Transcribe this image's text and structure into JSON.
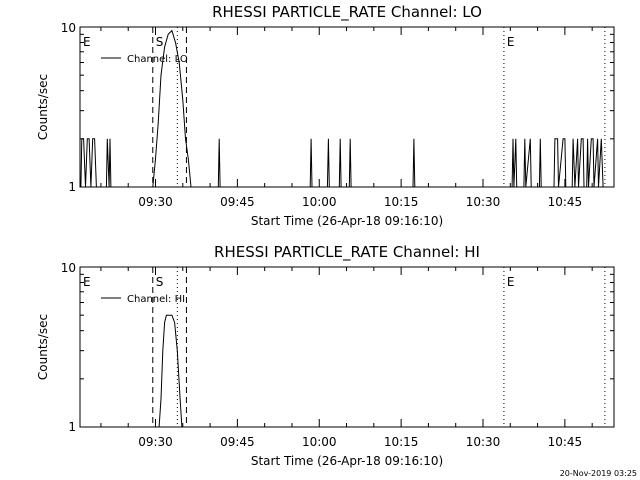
{
  "footer": {
    "timestamp": "20-Nov-2019 03:25"
  },
  "chart_data": [
    {
      "type": "line",
      "title": "RHESSI PARTICLE_RATE Channel: LO",
      "xlabel": "Start Time (26-Apr-18 09:16:10)",
      "ylabel": "Counts/sec",
      "yscale": "log",
      "ylim": [
        1,
        10
      ],
      "ytick_labels": [
        "1",
        "10"
      ],
      "xlim": [
        "09:16:10",
        "10:54:00"
      ],
      "xtick_labels": [
        "09:30",
        "09:45",
        "10:00",
        "10:15",
        "10:30",
        "10:45"
      ],
      "legend": {
        "position": "top-left",
        "entries": [
          "Channel: LO"
        ]
      },
      "markers": [
        {
          "label": "E",
          "time": "09:16:10",
          "style": "dotted"
        },
        {
          "label": "S",
          "time": "09:29:30",
          "style": "dashed"
        },
        {
          "label": "",
          "time": "09:34:00",
          "style": "dotted"
        },
        {
          "label": "",
          "time": "09:35:40",
          "style": "dashed"
        },
        {
          "label": "E",
          "time": "10:33:50",
          "style": "dotted"
        },
        {
          "label": "",
          "time": "10:52:20",
          "style": "dotted"
        }
      ],
      "series": [
        {
          "values": [
            [
              "09:16:20",
              1
            ],
            [
              "09:16:30",
              2
            ],
            [
              "09:16:50",
              2
            ],
            [
              "09:17:10",
              1
            ],
            [
              "09:17:30",
              2
            ],
            [
              "09:17:50",
              2
            ],
            [
              "09:18:10",
              1
            ],
            [
              "09:18:30",
              2
            ],
            [
              "09:18:50",
              2
            ],
            [
              "09:19:10",
              1
            ],
            [
              "09:21:00",
              1
            ],
            [
              "09:21:10",
              2
            ],
            [
              "09:21:30",
              1
            ],
            [
              "09:21:40",
              2
            ],
            [
              "09:21:50",
              1
            ],
            [
              "09:29:30",
              1
            ],
            [
              "09:30:00",
              1.5
            ],
            [
              "09:30:30",
              2.5
            ],
            [
              "09:31:00",
              5
            ],
            [
              "09:31:40",
              7.5
            ],
            [
              "09:32:20",
              9
            ],
            [
              "09:33:00",
              9.5
            ],
            [
              "09:33:40",
              8
            ],
            [
              "09:34:20",
              6
            ],
            [
              "09:35:00",
              3.5
            ],
            [
              "09:35:30",
              2
            ],
            [
              "09:36:00",
              1.5
            ],
            [
              "09:36:30",
              1
            ],
            [
              "09:41:30",
              1
            ],
            [
              "09:41:40",
              2
            ],
            [
              "09:41:50",
              1
            ],
            [
              "09:58:20",
              1
            ],
            [
              "09:58:30",
              2
            ],
            [
              "09:58:40",
              1
            ],
            [
              "10:01:30",
              1
            ],
            [
              "10:01:40",
              2
            ],
            [
              "10:01:50",
              1
            ],
            [
              "10:03:40",
              1
            ],
            [
              "10:03:50",
              2
            ],
            [
              "10:04:00",
              1
            ],
            [
              "10:05:30",
              1
            ],
            [
              "10:05:40",
              2
            ],
            [
              "10:05:50",
              1
            ],
            [
              "10:17:10",
              1
            ],
            [
              "10:17:20",
              2
            ],
            [
              "10:17:30",
              1
            ],
            [
              "10:35:20",
              1
            ],
            [
              "10:35:30",
              2
            ],
            [
              "10:35:40",
              1
            ],
            [
              "10:36:00",
              2
            ],
            [
              "10:36:10",
              1
            ],
            [
              "10:37:30",
              1
            ],
            [
              "10:37:40",
              2
            ],
            [
              "10:37:50",
              1
            ],
            [
              "10:38:40",
              2
            ],
            [
              "10:38:50",
              1
            ],
            [
              "10:40:20",
              1
            ],
            [
              "10:40:30",
              2
            ],
            [
              "10:40:40",
              1
            ],
            [
              "10:43:00",
              1
            ],
            [
              "10:43:10",
              2
            ],
            [
              "10:43:40",
              2
            ],
            [
              "10:43:50",
              1
            ],
            [
              "10:44:40",
              2
            ],
            [
              "10:45:00",
              2
            ],
            [
              "10:45:10",
              1
            ],
            [
              "10:46:20",
              1
            ],
            [
              "10:46:30",
              2
            ],
            [
              "10:46:50",
              1
            ],
            [
              "10:47:20",
              2
            ],
            [
              "10:47:30",
              1
            ],
            [
              "10:48:00",
              2
            ],
            [
              "10:48:20",
              2
            ],
            [
              "10:48:30",
              1
            ],
            [
              "10:49:00",
              1
            ],
            [
              "10:49:10",
              2
            ],
            [
              "10:49:20",
              1
            ],
            [
              "10:49:50",
              2
            ],
            [
              "10:50:10",
              2
            ],
            [
              "10:50:20",
              1
            ],
            [
              "10:51:00",
              2
            ],
            [
              "10:51:10",
              1
            ],
            [
              "10:51:40",
              2
            ],
            [
              "10:52:00",
              1
            ]
          ]
        }
      ]
    },
    {
      "type": "line",
      "title": "RHESSI PARTICLE_RATE Channel: HI",
      "xlabel": "Start Time (26-Apr-18 09:16:10)",
      "ylabel": "Counts/sec",
      "yscale": "log",
      "ylim": [
        1,
        10
      ],
      "ytick_labels": [
        "1",
        "10"
      ],
      "xlim": [
        "09:16:10",
        "10:54:00"
      ],
      "xtick_labels": [
        "09:30",
        "09:45",
        "10:00",
        "10:15",
        "10:30",
        "10:45"
      ],
      "legend": {
        "position": "top-left",
        "entries": [
          "Channel: HI"
        ]
      },
      "markers": [
        {
          "label": "E",
          "time": "09:16:10",
          "style": "dotted"
        },
        {
          "label": "S",
          "time": "09:29:30",
          "style": "dashed"
        },
        {
          "label": "",
          "time": "09:34:00",
          "style": "dotted"
        },
        {
          "label": "",
          "time": "09:35:40",
          "style": "dashed"
        },
        {
          "label": "E",
          "time": "10:33:50",
          "style": "dotted"
        },
        {
          "label": "",
          "time": "10:52:20",
          "style": "dotted"
        }
      ],
      "series": [
        {
          "values": [
            [
              "09:30:40",
              1
            ],
            [
              "09:31:00",
              1.5
            ],
            [
              "09:31:20",
              3
            ],
            [
              "09:31:40",
              4.5
            ],
            [
              "09:32:00",
              5
            ],
            [
              "09:33:00",
              5
            ],
            [
              "09:33:30",
              4.5
            ],
            [
              "09:34:00",
              3
            ],
            [
              "09:34:30",
              1.5
            ],
            [
              "09:34:50",
              1
            ]
          ]
        }
      ]
    }
  ]
}
